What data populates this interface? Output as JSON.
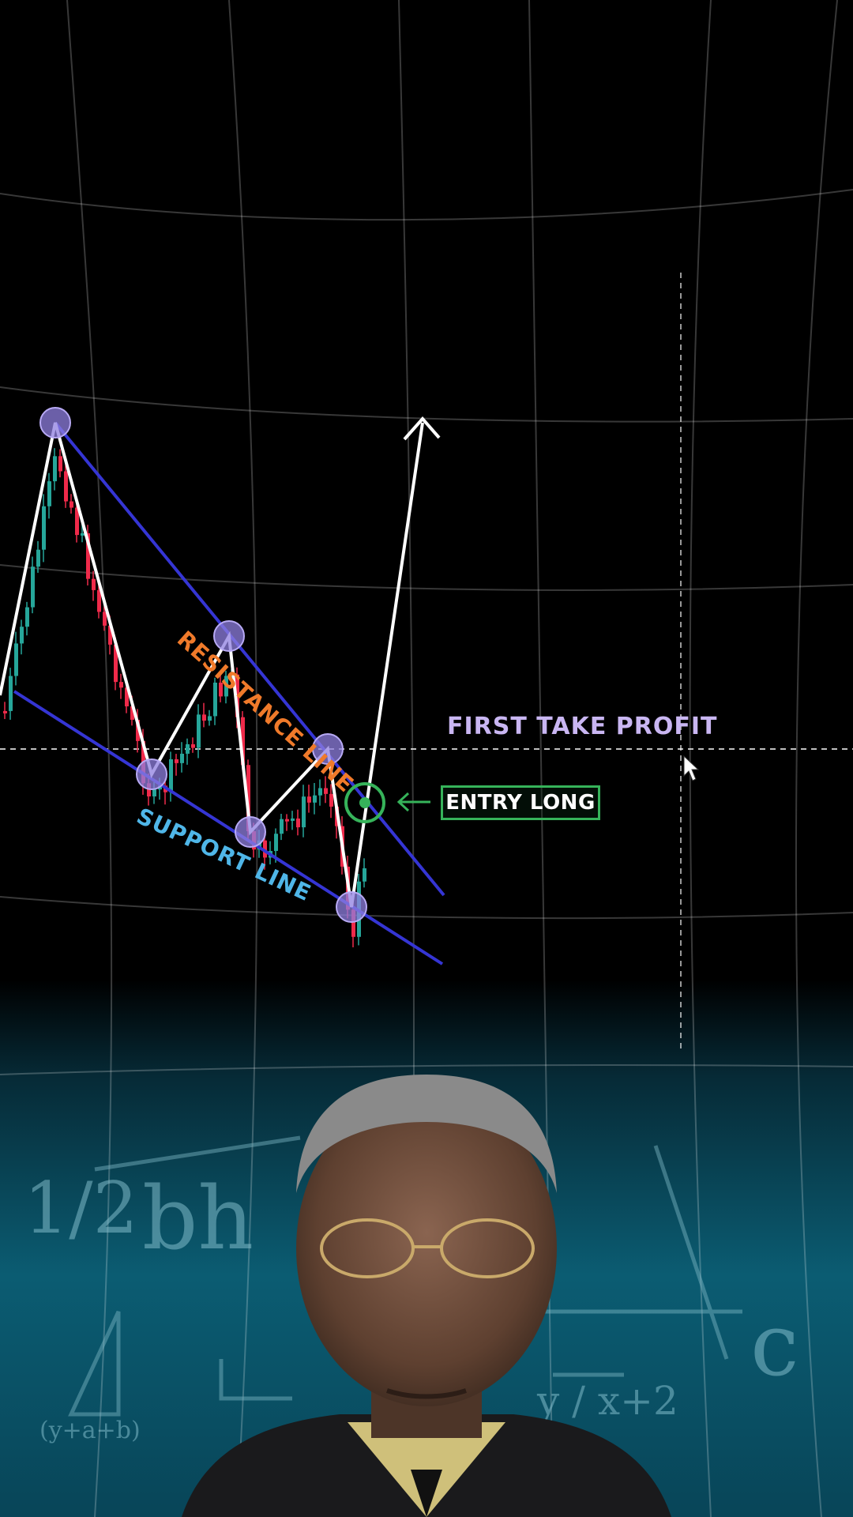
{
  "labels": {
    "first_take_profit": "FIRST TAKE PROFIT",
    "entry_long": "ENTRY LONG",
    "resistance_line": "RESISTANCE LINE",
    "support_line": "SUPPORT LINE",
    "entry_arrow": "←"
  },
  "chalkboard_text": {
    "half": "1/2",
    "bh": "bh",
    "ratio": "y / x+2",
    "sum": "(y+a+b)",
    "c": "c"
  },
  "colors": {
    "background": "#000000",
    "grid": "#ffffff",
    "trendline": "#3a3ad8",
    "zigzag": "#ffffff",
    "pivot": "#8f7fe0",
    "bull_candle": "#26a69a",
    "bear_candle": "#ef2a4a",
    "resistance_text": "#f07a2a",
    "support_text": "#4fb6e8",
    "take_profit_text": "#c9b6f2",
    "entry": "#36b35a",
    "chalkboard": "#0e6d86"
  },
  "icons": {
    "cursor": "mouse-pointer-icon",
    "up_arrow": "arrow-up-icon",
    "entry_arrow": "arrow-left-icon"
  },
  "chart_data": {
    "type": "line",
    "pattern": "falling wedge",
    "lines": [
      "RESISTANCE LINE",
      "SUPPORT LINE",
      "FIRST TAKE PROFIT"
    ]
  }
}
